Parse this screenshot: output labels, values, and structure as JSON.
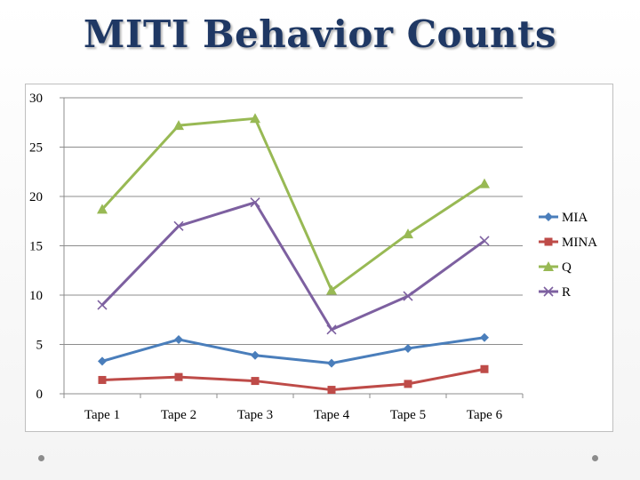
{
  "slide": {
    "title": "MITI Behavior Counts"
  },
  "chart_data": {
    "type": "line",
    "title": "",
    "xlabel": "",
    "ylabel": "",
    "categories": [
      "Tape 1",
      "Tape 2",
      "Tape 3",
      "Tape 4",
      "Tape 5",
      "Tape 6"
    ],
    "ylim": [
      0,
      30
    ],
    "yticks": [
      0,
      5,
      10,
      15,
      20,
      25,
      30
    ],
    "grid": true,
    "legend": "right",
    "series": [
      {
        "name": "MIA",
        "marker": "diamond",
        "color": "#4a7ebb",
        "values": [
          3.3,
          5.5,
          3.9,
          3.1,
          4.6,
          5.7
        ]
      },
      {
        "name": "MINA",
        "marker": "square",
        "color": "#be4b48",
        "values": [
          1.4,
          1.7,
          1.3,
          0.4,
          1.0,
          2.5
        ]
      },
      {
        "name": "Q",
        "marker": "triangle",
        "color": "#98b954",
        "values": [
          18.7,
          27.2,
          27.9,
          10.5,
          16.2,
          21.3
        ]
      },
      {
        "name": "R",
        "marker": "x",
        "color": "#7d60a0",
        "values": [
          9.0,
          17.0,
          19.4,
          6.5,
          9.9,
          15.5
        ]
      }
    ]
  }
}
